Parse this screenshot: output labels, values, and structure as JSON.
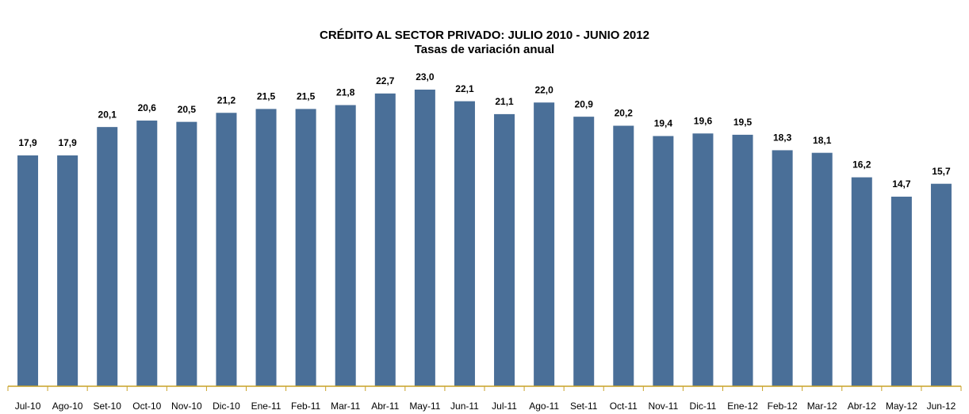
{
  "chart_data": {
    "type": "bar",
    "title": "CRÉDITO AL SECTOR PRIVADO: JULIO 2010 - JUNIO 2012",
    "subtitle": "Tasas de variación anual",
    "categories": [
      "Jul-10",
      "Ago-10",
      "Set-10",
      "Oct-10",
      "Nov-10",
      "Dic-10",
      "Ene-11",
      "Feb-11",
      "Mar-11",
      "Abr-11",
      "May-11",
      "Jun-11",
      "Jul-11",
      "Ago-11",
      "Set-11",
      "Oct-11",
      "Nov-11",
      "Dic-11",
      "Ene-12",
      "Feb-12",
      "Mar-12",
      "Abr-12",
      "May-12",
      "Jun-12"
    ],
    "values": [
      17.9,
      17.9,
      20.1,
      20.6,
      20.5,
      21.2,
      21.5,
      21.5,
      21.8,
      22.7,
      23.0,
      22.1,
      21.1,
      22.0,
      20.9,
      20.2,
      19.4,
      19.6,
      19.5,
      18.3,
      18.1,
      16.2,
      14.7,
      15.7
    ],
    "value_labels": [
      "17,9",
      "17,9",
      "20,1",
      "20,6",
      "20,5",
      "21,2",
      "21,5",
      "21,5",
      "21,8",
      "22,7",
      "23,0",
      "22,1",
      "21,1",
      "22,0",
      "20,9",
      "20,2",
      "19,4",
      "19,6",
      "19,5",
      "18,3",
      "18,1",
      "16,2",
      "14,7",
      "15,7"
    ],
    "color": "#4a6f98"
  }
}
